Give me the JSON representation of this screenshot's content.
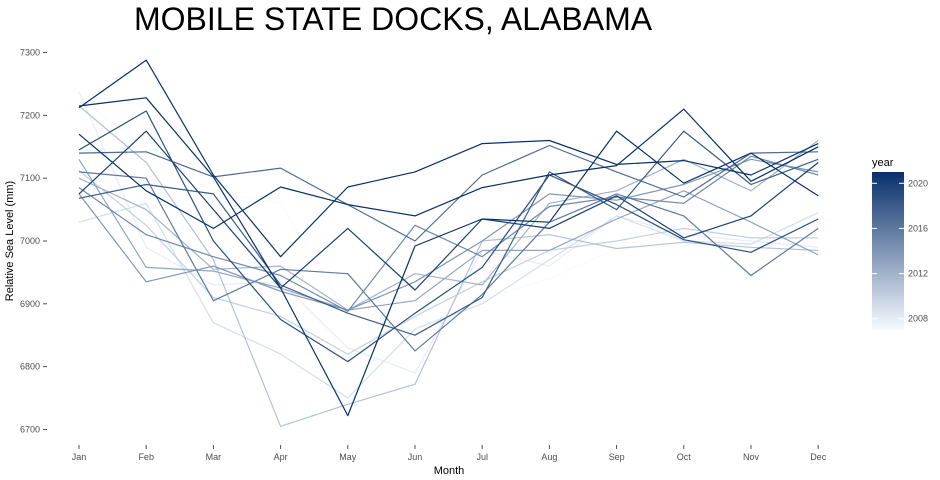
{
  "chart_data": {
    "type": "line",
    "title": "MOBILE STATE DOCKS, ALABAMA",
    "xlabel": "Month",
    "ylabel": "Relative Sea Level (mm)",
    "ylim": [
      6680,
      7320
    ],
    "yticks": [
      6700,
      6800,
      6900,
      7000,
      7100,
      7200,
      7300
    ],
    "ytick_labels": [
      "6700",
      "6800",
      "6900",
      "7000",
      "7100",
      "7200",
      "7300"
    ],
    "categories": [
      "Jan",
      "Feb",
      "Mar",
      "Apr",
      "May",
      "Jun",
      "Jul",
      "Aug",
      "Sep",
      "Oct",
      "Nov",
      "Dec"
    ],
    "grid": false,
    "legend": {
      "title": "year",
      "position": "right",
      "type": "colorbar",
      "range": [
        2007,
        2021
      ],
      "ticks": [
        2008,
        2012,
        2016,
        2020
      ],
      "tick_labels": [
        "2008",
        "2012",
        "2016",
        "2020"
      ],
      "low_color": "#f7fbff",
      "high_color": "#08306b"
    },
    "series": [
      {
        "year": 2007,
        "values": [
          7228,
          7150,
          7078,
          7060,
          6880,
          6860,
          6908,
          6940,
          6988,
          6993,
          6992,
          7035
        ]
      },
      {
        "year": 2008,
        "values": [
          7238,
          6990,
          6930,
          6935,
          6830,
          6790,
          6985,
          6960,
          7040,
          7010,
          7000,
          6990
        ]
      },
      {
        "year": 2009,
        "values": [
          7030,
          7060,
          6870,
          6820,
          6750,
          6860,
          6900,
          6970,
          7040,
          7000,
          6995,
          7045
        ]
      },
      {
        "year": 2010,
        "values": [
          7112,
          7025,
          6910,
          6880,
          6820,
          6880,
          6935,
          6985,
          7000,
          7020,
          7005,
          7005
        ]
      },
      {
        "year": 2011,
        "values": [
          7215,
          7125,
          6970,
          6705,
          6740,
          6772,
          7000,
          7010,
          6988,
          6998,
          6990,
          6985
        ]
      },
      {
        "year": 2012,
        "values": [
          7100,
          7050,
          6955,
          6960,
          6890,
          6948,
          6930,
          7060,
          7080,
          7130,
          7080,
          7160
        ]
      },
      {
        "year": 2013,
        "values": [
          7130,
          6958,
          6952,
          6925,
          6890,
          6905,
          6985,
          6985,
          7035,
          7080,
          7030,
          6978
        ]
      },
      {
        "year": 2014,
        "values": [
          7075,
          6935,
          6960,
          6920,
          6890,
          6935,
          7000,
          7075,
          7065,
          7090,
          7130,
          7110
        ]
      },
      {
        "year": 2015,
        "values": [
          7085,
          7010,
          6975,
          6945,
          6888,
          7025,
          6975,
          7055,
          7070,
          7060,
          7135,
          7105
        ]
      },
      {
        "year": 2016,
        "values": [
          7110,
          7100,
          6905,
          6955,
          6948,
          6825,
          6915,
          7030,
          7075,
          7040,
          6945,
          7020
        ]
      },
      {
        "year": 2017,
        "values": [
          7140,
          7142,
          7102,
          7116,
          7058,
          7000,
          7105,
          7152,
          7110,
          7070,
          7140,
          7142
        ]
      },
      {
        "year": 2018,
        "values": [
          7068,
          7090,
          7075,
          6930,
          6885,
          6850,
          6910,
          7110,
          7050,
          7175,
          7090,
          7130
        ]
      },
      {
        "year": 2019,
        "values": [
          7145,
          7207,
          7000,
          6875,
          6808,
          6885,
          6958,
          7105,
          7058,
          7002,
          6982,
          7035
        ]
      },
      {
        "year": 2020,
        "values": [
          7075,
          7175,
          7050,
          6925,
          7020,
          6922,
          7035,
          7020,
          7072,
          7005,
          7040,
          7125
        ]
      },
      {
        "year": 2021,
        "values": [
          7215,
          7228,
          7102,
          6925,
          6722,
          6992,
          7035,
          7030,
          7175,
          7092,
          7140,
          7072
        ]
      },
      {
        "year": 2021,
        "values": [
          7170,
          7080,
          7020,
          7086,
          7058,
          7040,
          7085,
          7105,
          7120,
          7210,
          7095,
          7150
        ]
      },
      {
        "year": 2021,
        "values": [
          7212,
          7288,
          7105,
          6975,
          7086,
          7110,
          7155,
          7160,
          7122,
          7128,
          7105,
          7155
        ]
      }
    ]
  }
}
